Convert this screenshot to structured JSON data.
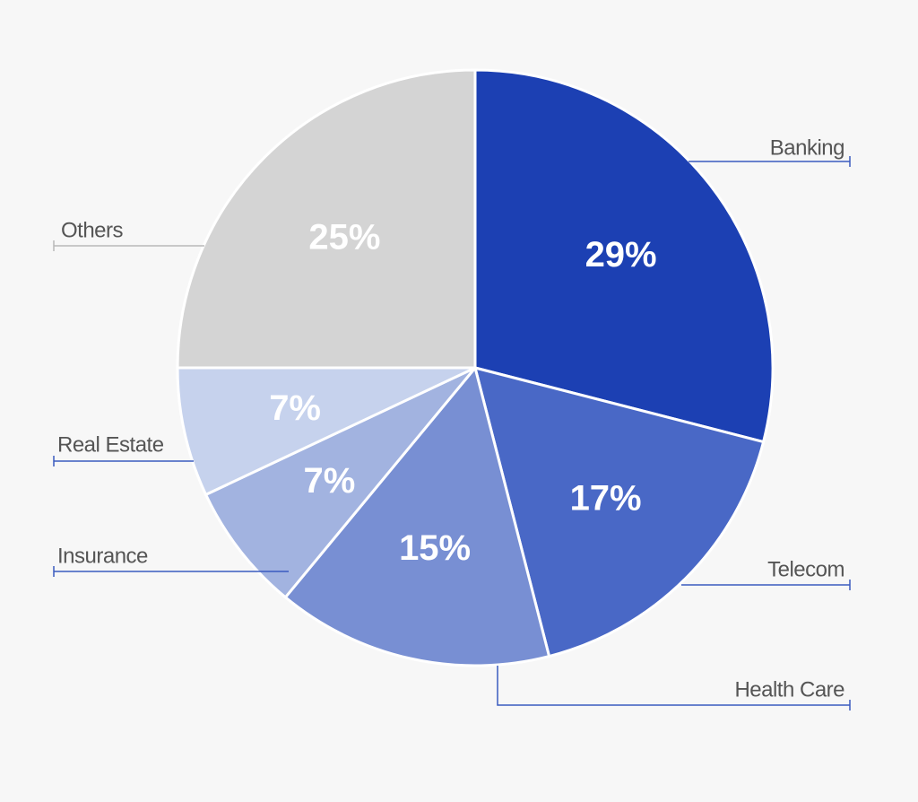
{
  "chart_data": {
    "type": "pie",
    "title": "",
    "start_angle_deg": 0,
    "direction": "clockwise",
    "slices": [
      {
        "name": "Banking",
        "value": 29,
        "label": "29%",
        "color": "#1c40b3"
      },
      {
        "name": "Telecom",
        "value": 17,
        "label": "17%",
        "color": "#4968c6"
      },
      {
        "name": "Health Care",
        "value": 15,
        "label": "15%",
        "color": "#788fd3"
      },
      {
        "name": "Insurance",
        "value": 7,
        "label": "7%",
        "color": "#a2b3e0"
      },
      {
        "name": "Real Estate",
        "value": 7,
        "label": "7%",
        "color": "#c6d2ed"
      },
      {
        "name": "Others",
        "value": 25,
        "label": "25%",
        "color": "#d4d4d4"
      }
    ]
  },
  "colors": {
    "background": "#f7f7f7",
    "leader_line_blue": "#3a5bbf",
    "leader_line_gray": "#b9b9b9",
    "label_text": "#555555",
    "percent_text": "#ffffff"
  }
}
